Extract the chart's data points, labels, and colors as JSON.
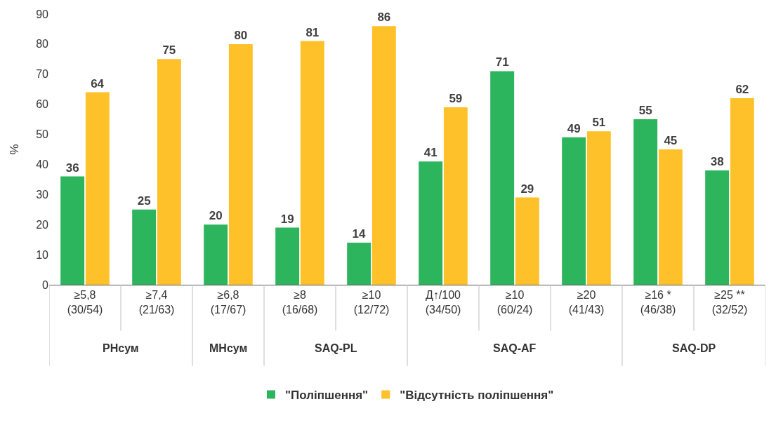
{
  "chart_data": {
    "type": "bar",
    "ylabel": "%",
    "categories": [
      "≥5,8\n(30/54)",
      "≥7,4\n(21/63)",
      "≥6,8\n(17/67)",
      "≥8\n(16/68)",
      "≥10\n(12/72)",
      "Д↑/100\n(34/50)",
      "≥10\n(60/24)",
      "≥20\n(41/43)",
      "≥16 *\n(46/38)",
      "≥25 **\n(32/52)"
    ],
    "series": [
      {
        "name": "\"Поліпшення\"",
        "color": "#2db55d",
        "values": [
          36,
          25,
          20,
          19,
          14,
          41,
          71,
          49,
          55,
          38
        ]
      },
      {
        "name": "\"Відсутність поліпшення\"",
        "color": "#ffc12a",
        "values": [
          64,
          75,
          80,
          81,
          86,
          59,
          29,
          51,
          45,
          62
        ]
      }
    ],
    "annotations": [
      "РНсум",
      "МНсум",
      "SAQ-PL",
      "SAQ-AF",
      "SAQ-DP"
    ],
    "ylim": [
      0,
      90
    ],
    "yticks": [
      0,
      10,
      20,
      30,
      40,
      50,
      60,
      70,
      80,
      90
    ],
    "grid": false,
    "legend": "bottom",
    "data_labels": true
  }
}
